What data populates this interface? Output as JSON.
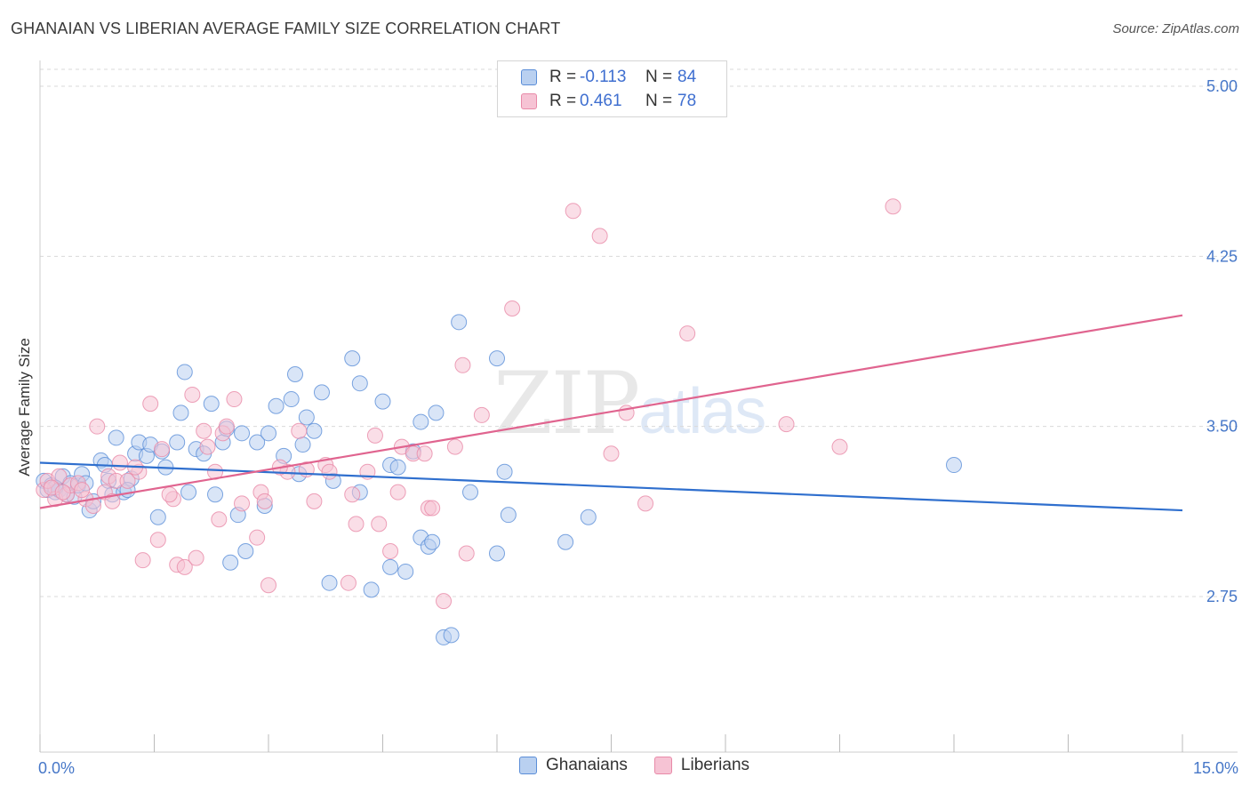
{
  "header": {
    "title": "GHANAIAN VS LIBERIAN AVERAGE FAMILY SIZE CORRELATION CHART",
    "source": "Source: ZipAtlas.com"
  },
  "legend": {
    "rows": [
      {
        "r_label": "R =",
        "r_value": "-0.113",
        "n_label": "N =",
        "n_value": "84"
      },
      {
        "r_label": "R =",
        "r_value": "0.461",
        "n_label": "N =",
        "n_value": "78"
      }
    ]
  },
  "bottom_legend": {
    "ghanaians": "Ghanaians",
    "liberians": "Liberians"
  },
  "watermark": {
    "zip": "ZIP",
    "atlas": "atlas"
  },
  "colors": {
    "ghanaians_fill": "#b9d0f0",
    "ghanaians_stroke": "#5b8ed8",
    "ghanaians_line": "#2f6fce",
    "liberians_fill": "#f6c3d4",
    "liberians_stroke": "#e88aa8",
    "liberians_line": "#e0648f",
    "axis_label": "#4677c8",
    "grid": "#d9d9d9"
  },
  "chart_data": {
    "type": "scatter",
    "title": "GHANAIAN VS LIBERIAN AVERAGE FAMILY SIZE CORRELATION CHART",
    "xlabel": "",
    "ylabel": "Average Family Size",
    "xlim": [
      0,
      15
    ],
    "ylim": [
      2.0,
      5.1
    ],
    "x_tick_labels": [
      "0.0%",
      "15.0%"
    ],
    "y_ticks": [
      2.75,
      3.5,
      4.25,
      5.0
    ],
    "y_tick_labels": [
      "2.75",
      "3.50",
      "4.25",
      "5.00"
    ],
    "grid": true,
    "legend_position": "top-center",
    "series": [
      {
        "name": "Ghanaians",
        "R": -0.113,
        "N": 84,
        "trend": [
          [
            0,
            3.34
          ],
          [
            15,
            3.13
          ]
        ],
        "points": [
          [
            0.05,
            3.26
          ],
          [
            0.1,
            3.22
          ],
          [
            0.15,
            3.24
          ],
          [
            0.2,
            3.21
          ],
          [
            0.25,
            3.22
          ],
          [
            0.3,
            3.28
          ],
          [
            0.35,
            3.2
          ],
          [
            0.4,
            3.25
          ],
          [
            0.45,
            3.19
          ],
          [
            0.5,
            3.24
          ],
          [
            0.55,
            3.29
          ],
          [
            0.65,
            3.13
          ],
          [
            0.7,
            3.17
          ],
          [
            0.8,
            3.35
          ],
          [
            0.85,
            3.33
          ],
          [
            0.9,
            3.26
          ],
          [
            0.95,
            3.2
          ],
          [
            1.0,
            3.45
          ],
          [
            1.1,
            3.21
          ],
          [
            1.2,
            3.27
          ],
          [
            1.25,
            3.38
          ],
          [
            1.3,
            3.43
          ],
          [
            1.4,
            3.37
          ],
          [
            1.45,
            3.42
          ],
          [
            1.55,
            3.1
          ],
          [
            1.6,
            3.39
          ],
          [
            1.65,
            3.32
          ],
          [
            1.8,
            3.43
          ],
          [
            1.85,
            3.56
          ],
          [
            1.9,
            3.74
          ],
          [
            1.95,
            3.21
          ],
          [
            2.05,
            3.4
          ],
          [
            2.15,
            3.38
          ],
          [
            2.25,
            3.6
          ],
          [
            2.3,
            3.2
          ],
          [
            2.4,
            3.43
          ],
          [
            2.45,
            3.49
          ],
          [
            2.5,
            2.9
          ],
          [
            2.6,
            3.11
          ],
          [
            2.65,
            3.47
          ],
          [
            2.7,
            2.95
          ],
          [
            2.85,
            3.43
          ],
          [
            2.95,
            3.15
          ],
          [
            3.0,
            3.47
          ],
          [
            3.1,
            3.59
          ],
          [
            3.2,
            3.37
          ],
          [
            3.3,
            3.62
          ],
          [
            3.35,
            3.73
          ],
          [
            3.4,
            3.29
          ],
          [
            3.45,
            3.42
          ],
          [
            3.5,
            3.54
          ],
          [
            3.6,
            3.48
          ],
          [
            3.7,
            3.65
          ],
          [
            3.8,
            2.81
          ],
          [
            3.85,
            3.26
          ],
          [
            4.1,
            3.8
          ],
          [
            4.2,
            3.69
          ],
          [
            4.2,
            3.21
          ],
          [
            4.35,
            2.78
          ],
          [
            4.5,
            3.61
          ],
          [
            4.6,
            3.33
          ],
          [
            4.6,
            2.88
          ],
          [
            4.7,
            3.32
          ],
          [
            4.8,
            2.86
          ],
          [
            4.9,
            3.39
          ],
          [
            5.0,
            3.52
          ],
          [
            5.0,
            3.01
          ],
          [
            5.1,
            2.97
          ],
          [
            5.15,
            2.99
          ],
          [
            5.2,
            3.56
          ],
          [
            5.3,
            2.57
          ],
          [
            5.4,
            2.58
          ],
          [
            5.5,
            3.96
          ],
          [
            5.65,
            3.21
          ],
          [
            6.0,
            3.8
          ],
          [
            6.0,
            2.94
          ],
          [
            6.1,
            3.3
          ],
          [
            6.15,
            3.11
          ],
          [
            6.9,
            2.99
          ],
          [
            7.2,
            3.1
          ],
          [
            12.0,
            3.33
          ],
          [
            0.2,
            3.23
          ],
          [
            0.6,
            3.25
          ],
          [
            1.15,
            3.22
          ]
        ]
      },
      {
        "name": "Liberians",
        "R": 0.461,
        "N": 78,
        "trend": [
          [
            0,
            3.14
          ],
          [
            15,
            3.99
          ]
        ],
        "points": [
          [
            0.05,
            3.22
          ],
          [
            0.1,
            3.26
          ],
          [
            0.2,
            3.18
          ],
          [
            0.25,
            3.28
          ],
          [
            0.35,
            3.2
          ],
          [
            0.4,
            3.24
          ],
          [
            0.5,
            3.25
          ],
          [
            0.6,
            3.18
          ],
          [
            0.7,
            3.15
          ],
          [
            0.75,
            3.5
          ],
          [
            0.85,
            3.21
          ],
          [
            0.9,
            3.28
          ],
          [
            0.95,
            3.17
          ],
          [
            1.0,
            3.26
          ],
          [
            1.05,
            3.34
          ],
          [
            1.15,
            3.26
          ],
          [
            1.3,
            3.3
          ],
          [
            1.35,
            2.91
          ],
          [
            1.45,
            3.6
          ],
          [
            1.55,
            3.0
          ],
          [
            1.6,
            3.4
          ],
          [
            1.75,
            3.18
          ],
          [
            1.8,
            2.89
          ],
          [
            1.9,
            2.88
          ],
          [
            2.0,
            3.64
          ],
          [
            2.05,
            2.92
          ],
          [
            2.15,
            3.48
          ],
          [
            2.3,
            3.3
          ],
          [
            2.35,
            3.09
          ],
          [
            2.4,
            3.47
          ],
          [
            2.45,
            3.5
          ],
          [
            2.55,
            3.62
          ],
          [
            2.65,
            3.16
          ],
          [
            2.85,
            3.01
          ],
          [
            2.9,
            3.21
          ],
          [
            2.95,
            3.17
          ],
          [
            3.0,
            2.8
          ],
          [
            3.25,
            3.3
          ],
          [
            3.4,
            3.48
          ],
          [
            3.5,
            3.31
          ],
          [
            3.6,
            3.17
          ],
          [
            3.75,
            3.33
          ],
          [
            3.8,
            3.3
          ],
          [
            4.05,
            2.81
          ],
          [
            4.1,
            3.2
          ],
          [
            4.15,
            3.07
          ],
          [
            4.4,
            3.46
          ],
          [
            4.45,
            3.07
          ],
          [
            4.6,
            2.95
          ],
          [
            4.7,
            3.21
          ],
          [
            4.75,
            3.41
          ],
          [
            4.9,
            3.38
          ],
          [
            5.05,
            3.38
          ],
          [
            5.1,
            3.14
          ],
          [
            5.15,
            3.14
          ],
          [
            5.3,
            2.73
          ],
          [
            5.45,
            3.41
          ],
          [
            5.55,
            3.77
          ],
          [
            5.6,
            2.94
          ],
          [
            5.8,
            3.55
          ],
          [
            6.2,
            4.02
          ],
          [
            7.0,
            4.45
          ],
          [
            7.35,
            4.34
          ],
          [
            7.5,
            3.38
          ],
          [
            7.7,
            3.56
          ],
          [
            7.95,
            3.16
          ],
          [
            8.5,
            3.91
          ],
          [
            9.8,
            3.51
          ],
          [
            10.5,
            3.41
          ],
          [
            11.2,
            4.47
          ],
          [
            0.15,
            3.23
          ],
          [
            0.3,
            3.21
          ],
          [
            0.55,
            3.22
          ],
          [
            1.25,
            3.32
          ],
          [
            2.2,
            3.41
          ],
          [
            3.15,
            3.32
          ],
          [
            4.3,
            3.3
          ],
          [
            1.7,
            3.2
          ]
        ]
      }
    ]
  }
}
